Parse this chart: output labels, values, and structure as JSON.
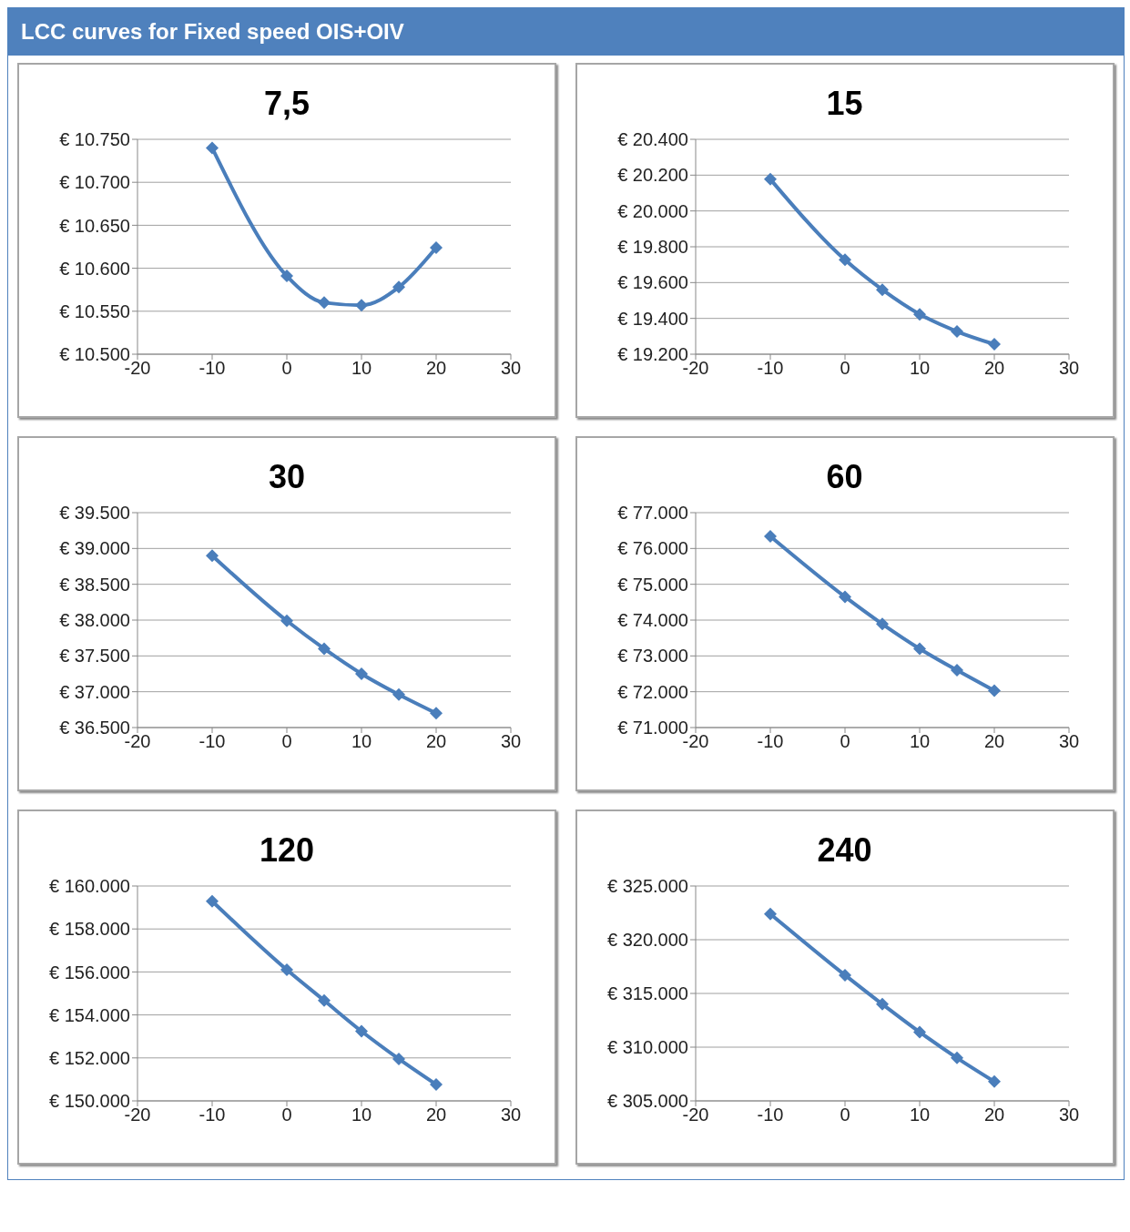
{
  "chart_data": [
    {
      "type": "line",
      "title": "7,5",
      "annotations": [
        "LCC curves for Fixed speed OIS+OIV"
      ],
      "x": [
        -10,
        0,
        5,
        10,
        15,
        20
      ],
      "series": [
        {
          "color": "#4a7ebb",
          "values": [
            10740,
            10591,
            10560,
            10557,
            10578,
            10624
          ]
        }
      ],
      "xlim": [
        -20,
        30
      ],
      "xticks": [
        -20,
        -10,
        0,
        10,
        20,
        30
      ],
      "ylim": [
        10500,
        10750
      ],
      "yticks": [
        {
          "value": 10500,
          "label": "€ 10.500"
        },
        {
          "value": 10550,
          "label": "€ 10.550"
        },
        {
          "value": 10600,
          "label": "€ 10.600"
        },
        {
          "value": 10650,
          "label": "€ 10.650"
        },
        {
          "value": 10700,
          "label": "€ 10.700"
        },
        {
          "value": 10750,
          "label": "€ 10.750"
        }
      ],
      "grid": "y",
      "marker": "diamond",
      "legend": false
    },
    {
      "type": "line",
      "title": "15",
      "x": [
        -10,
        0,
        5,
        10,
        15,
        20
      ],
      "series": [
        {
          "color": "#4a7ebb",
          "values": [
            20177,
            19727,
            19560,
            19423,
            19327,
            19256
          ]
        }
      ],
      "xlim": [
        -20,
        30
      ],
      "xticks": [
        -20,
        -10,
        0,
        10,
        20,
        30
      ],
      "ylim": [
        19200,
        20400
      ],
      "yticks": [
        {
          "value": 19200,
          "label": "€ 19.200"
        },
        {
          "value": 19400,
          "label": "€ 19.400"
        },
        {
          "value": 19600,
          "label": "€ 19.600"
        },
        {
          "value": 19800,
          "label": "€ 19.800"
        },
        {
          "value": 20000,
          "label": "€ 20.000"
        },
        {
          "value": 20200,
          "label": "€ 20.200"
        },
        {
          "value": 20400,
          "label": "€ 20.400"
        }
      ],
      "grid": "y",
      "marker": "diamond",
      "legend": false
    },
    {
      "type": "line",
      "title": "30",
      "x": [
        -10,
        0,
        5,
        10,
        15,
        20
      ],
      "series": [
        {
          "color": "#4a7ebb",
          "values": [
            38900,
            37990,
            37600,
            37250,
            36960,
            36700
          ]
        }
      ],
      "xlim": [
        -20,
        30
      ],
      "xticks": [
        -20,
        -10,
        0,
        10,
        20,
        30
      ],
      "ylim": [
        36500,
        39500
      ],
      "yticks": [
        {
          "value": 36500,
          "label": "€ 36.500"
        },
        {
          "value": 37000,
          "label": "€ 37.000"
        },
        {
          "value": 37500,
          "label": "€ 37.500"
        },
        {
          "value": 38000,
          "label": "€ 38.000"
        },
        {
          "value": 38500,
          "label": "€ 38.500"
        },
        {
          "value": 39000,
          "label": "€ 39.000"
        },
        {
          "value": 39500,
          "label": "€ 39.500"
        }
      ],
      "grid": "y",
      "marker": "diamond",
      "legend": false
    },
    {
      "type": "line",
      "title": "60",
      "x": [
        -10,
        0,
        5,
        10,
        15,
        20
      ],
      "series": [
        {
          "color": "#4a7ebb",
          "values": [
            76340,
            74650,
            73890,
            73200,
            72600,
            72030
          ]
        }
      ],
      "xlim": [
        -20,
        30
      ],
      "xticks": [
        -20,
        -10,
        0,
        10,
        20,
        30
      ],
      "ylim": [
        71000,
        77000
      ],
      "yticks": [
        {
          "value": 71000,
          "label": "€ 71.000"
        },
        {
          "value": 72000,
          "label": "€ 72.000"
        },
        {
          "value": 73000,
          "label": "€ 73.000"
        },
        {
          "value": 74000,
          "label": "€ 74.000"
        },
        {
          "value": 75000,
          "label": "€ 75.000"
        },
        {
          "value": 76000,
          "label": "€ 76.000"
        },
        {
          "value": 77000,
          "label": "€ 77.000"
        }
      ],
      "grid": "y",
      "marker": "diamond",
      "legend": false
    },
    {
      "type": "line",
      "title": "120",
      "x": [
        -10,
        0,
        5,
        10,
        15,
        20
      ],
      "series": [
        {
          "color": "#4a7ebb",
          "values": [
            159290,
            156100,
            154670,
            153240,
            151950,
            150760
          ]
        }
      ],
      "xlim": [
        -20,
        30
      ],
      "xticks": [
        -20,
        -10,
        0,
        10,
        20,
        30
      ],
      "ylim": [
        150000,
        160000
      ],
      "yticks": [
        {
          "value": 150000,
          "label": "€ 150.000"
        },
        {
          "value": 152000,
          "label": "€ 152.000"
        },
        {
          "value": 154000,
          "label": "€ 154.000"
        },
        {
          "value": 156000,
          "label": "€ 156.000"
        },
        {
          "value": 158000,
          "label": "€ 158.000"
        },
        {
          "value": 160000,
          "label": "€ 160.000"
        }
      ],
      "grid": "y",
      "marker": "diamond",
      "legend": false
    },
    {
      "type": "line",
      "title": "240",
      "x": [
        -10,
        0,
        5,
        10,
        15,
        20
      ],
      "series": [
        {
          "color": "#4a7ebb",
          "values": [
            322400,
            316700,
            314000,
            311400,
            309000,
            306800
          ]
        }
      ],
      "xlim": [
        -20,
        30
      ],
      "xticks": [
        -20,
        -10,
        0,
        10,
        20,
        30
      ],
      "ylim": [
        305000,
        325000
      ],
      "yticks": [
        {
          "value": 305000,
          "label": "€ 305.000"
        },
        {
          "value": 310000,
          "label": "€ 310.000"
        },
        {
          "value": 315000,
          "label": "€ 315.000"
        },
        {
          "value": 320000,
          "label": "€ 320.000"
        },
        {
          "value": 325000,
          "label": "€ 325.000"
        }
      ],
      "grid": "y",
      "marker": "diamond",
      "legend": false
    }
  ]
}
